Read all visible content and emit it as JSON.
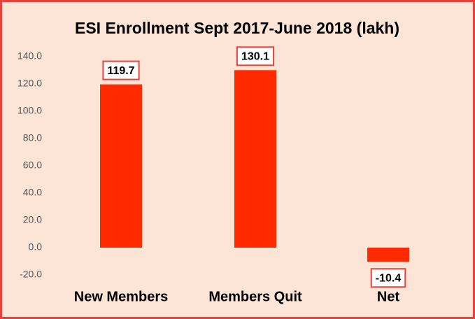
{
  "chart_data": {
    "type": "bar",
    "title": "ESI Enrollment Sept 2017-June 2018 (lakh)",
    "categories": [
      "New Members",
      "Members Quit",
      "Net"
    ],
    "values": [
      119.7,
      130.1,
      -10.4
    ],
    "color": "#ff2a00",
    "ylim": [
      -20,
      140
    ],
    "yticks": [
      {
        "value": -20,
        "label": "-20.0"
      },
      {
        "value": 0,
        "label": "0.0"
      },
      {
        "value": 20,
        "label": "20.0"
      },
      {
        "value": 40,
        "label": "40.0"
      },
      {
        "value": 60,
        "label": "60.0"
      },
      {
        "value": 80,
        "label": "80.0"
      },
      {
        "value": 100,
        "label": "100.0"
      },
      {
        "value": 120,
        "label": "120.0"
      },
      {
        "value": 140,
        "label": "140.0"
      }
    ],
    "grid": false
  }
}
